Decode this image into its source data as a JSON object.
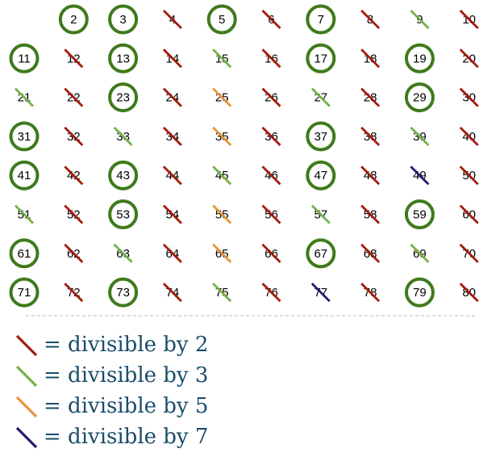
{
  "colors": {
    "prime": "#3f7a1c",
    "div2": "#a31c0c",
    "div3": "#74b247",
    "div5": "#e8943a",
    "div7": "#2b1770",
    "divider": "#bbbbbb",
    "legend_text": "#1a4d6b"
  },
  "grid": {
    "columns": 10,
    "start": 1,
    "end": 80,
    "cells": [
      {
        "n": 2,
        "mark": "prime"
      },
      {
        "n": 3,
        "mark": "prime"
      },
      {
        "n": 4,
        "mark": "div2"
      },
      {
        "n": 5,
        "mark": "prime"
      },
      {
        "n": 6,
        "mark": "div2"
      },
      {
        "n": 7,
        "mark": "prime"
      },
      {
        "n": 8,
        "mark": "div2"
      },
      {
        "n": 9,
        "mark": "div3"
      },
      {
        "n": 10,
        "mark": "div2"
      },
      {
        "n": 11,
        "mark": "prime"
      },
      {
        "n": 12,
        "mark": "div2"
      },
      {
        "n": 13,
        "mark": "prime"
      },
      {
        "n": 14,
        "mark": "div2"
      },
      {
        "n": 15,
        "mark": "div3"
      },
      {
        "n": 16,
        "mark": "div2"
      },
      {
        "n": 17,
        "mark": "prime"
      },
      {
        "n": 18,
        "mark": "div2"
      },
      {
        "n": 19,
        "mark": "prime"
      },
      {
        "n": 20,
        "mark": "div2"
      },
      {
        "n": 21,
        "mark": "div3"
      },
      {
        "n": 22,
        "mark": "div2"
      },
      {
        "n": 23,
        "mark": "prime"
      },
      {
        "n": 24,
        "mark": "div2"
      },
      {
        "n": 25,
        "mark": "div5"
      },
      {
        "n": 26,
        "mark": "div2"
      },
      {
        "n": 27,
        "mark": "div3"
      },
      {
        "n": 28,
        "mark": "div2"
      },
      {
        "n": 29,
        "mark": "prime"
      },
      {
        "n": 30,
        "mark": "div2"
      },
      {
        "n": 31,
        "mark": "prime"
      },
      {
        "n": 32,
        "mark": "div2"
      },
      {
        "n": 33,
        "mark": "div3"
      },
      {
        "n": 34,
        "mark": "div2"
      },
      {
        "n": 35,
        "mark": "div5"
      },
      {
        "n": 36,
        "mark": "div2"
      },
      {
        "n": 37,
        "mark": "prime"
      },
      {
        "n": 38,
        "mark": "div2"
      },
      {
        "n": 39,
        "mark": "div3"
      },
      {
        "n": 40,
        "mark": "div2"
      },
      {
        "n": 41,
        "mark": "prime"
      },
      {
        "n": 42,
        "mark": "div2"
      },
      {
        "n": 43,
        "mark": "prime"
      },
      {
        "n": 44,
        "mark": "div2"
      },
      {
        "n": 45,
        "mark": "div3"
      },
      {
        "n": 46,
        "mark": "div2"
      },
      {
        "n": 47,
        "mark": "prime"
      },
      {
        "n": 48,
        "mark": "div2"
      },
      {
        "n": 49,
        "mark": "div7"
      },
      {
        "n": 50,
        "mark": "div2"
      },
      {
        "n": 51,
        "mark": "div3"
      },
      {
        "n": 52,
        "mark": "div2"
      },
      {
        "n": 53,
        "mark": "prime"
      },
      {
        "n": 54,
        "mark": "div2"
      },
      {
        "n": 55,
        "mark": "div5"
      },
      {
        "n": 56,
        "mark": "div2"
      },
      {
        "n": 57,
        "mark": "div3"
      },
      {
        "n": 58,
        "mark": "div2"
      },
      {
        "n": 59,
        "mark": "prime"
      },
      {
        "n": 60,
        "mark": "div2"
      },
      {
        "n": 61,
        "mark": "prime"
      },
      {
        "n": 62,
        "mark": "div2"
      },
      {
        "n": 63,
        "mark": "div3"
      },
      {
        "n": 64,
        "mark": "div2"
      },
      {
        "n": 65,
        "mark": "div5"
      },
      {
        "n": 66,
        "mark": "div2"
      },
      {
        "n": 67,
        "mark": "prime"
      },
      {
        "n": 68,
        "mark": "div2"
      },
      {
        "n": 69,
        "mark": "div3"
      },
      {
        "n": 70,
        "mark": "div2"
      },
      {
        "n": 71,
        "mark": "prime"
      },
      {
        "n": 72,
        "mark": "div2"
      },
      {
        "n": 73,
        "mark": "prime"
      },
      {
        "n": 74,
        "mark": "div2"
      },
      {
        "n": 75,
        "mark": "div3"
      },
      {
        "n": 76,
        "mark": "div2"
      },
      {
        "n": 77,
        "mark": "div7"
      },
      {
        "n": 78,
        "mark": "div2"
      },
      {
        "n": 79,
        "mark": "prime"
      },
      {
        "n": 80,
        "mark": "div2"
      }
    ]
  },
  "legend": [
    {
      "key": "div2",
      "text": "= divisible by 2"
    },
    {
      "key": "div3",
      "text": "= divisible by 3"
    },
    {
      "key": "div5",
      "text": "= divisible by 5"
    },
    {
      "key": "div7",
      "text": "= divisible by 7"
    }
  ]
}
